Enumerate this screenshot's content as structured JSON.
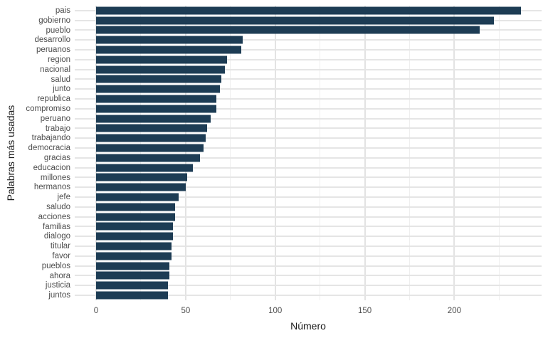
{
  "chart_data": {
    "type": "bar",
    "orientation": "horizontal",
    "title": "",
    "xlabel": "Número",
    "ylabel": "Palabras más usadas",
    "categories": [
      "pais",
      "gobierno",
      "pueblo",
      "desarrollo",
      "peruanos",
      "region",
      "nacional",
      "salud",
      "junto",
      "republica",
      "compromiso",
      "peruano",
      "trabajo",
      "trabajando",
      "democracia",
      "gracias",
      "educacion",
      "millones",
      "hermanos",
      "jefe",
      "saludo",
      "acciones",
      "familias",
      "dialogo",
      "titular",
      "favor",
      "pueblos",
      "ahora",
      "justicia",
      "juntos"
    ],
    "values": [
      237,
      222,
      214,
      82,
      81,
      73,
      72,
      70,
      69,
      67,
      67,
      64,
      62,
      61,
      60,
      58,
      54,
      51,
      50,
      46,
      44,
      44,
      43,
      43,
      42,
      42,
      41,
      41,
      40,
      40
    ],
    "x_ticks": [
      0,
      50,
      100,
      150,
      200
    ],
    "x_minor_ticks": [
      25,
      75,
      125,
      175,
      225
    ],
    "xlim": [
      0,
      250
    ],
    "grid": "on",
    "legend": "none",
    "bar_color": "#1d3c54",
    "major_grid_color": "#e3e3e3",
    "minor_grid_color": "#efefef",
    "row_grid_color": "#e5e5e5",
    "tick_label_color": "#4d4d4d",
    "axis_title_color": "#1a1a1a",
    "background_color": "#ffffff"
  }
}
